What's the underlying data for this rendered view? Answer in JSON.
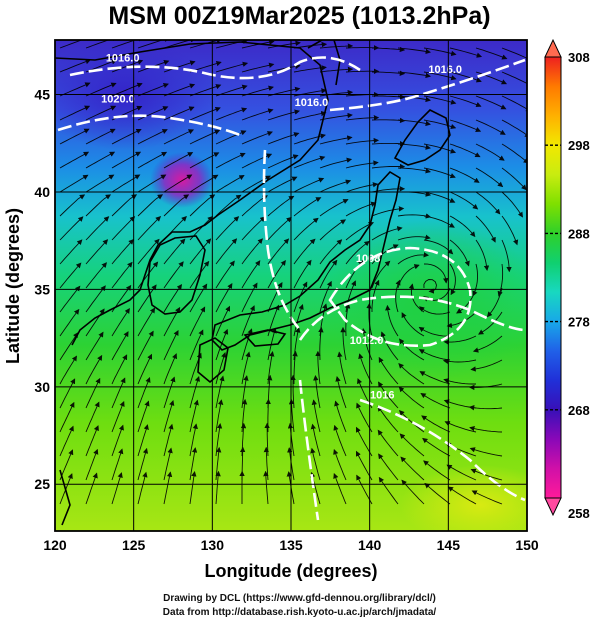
{
  "title": "MSM 00Z19Mar2025 (1013.2hPa)",
  "map": {
    "xlabel": "Longitude (degrees)",
    "ylabel": "Latitude  (degrees)",
    "xlim": [
      120,
      150
    ],
    "ylim": [
      22.6,
      47.8
    ],
    "xticks": [
      "120",
      "125",
      "130",
      "135",
      "140",
      "145",
      "150"
    ],
    "yticks": [
      "25",
      "30",
      "35",
      "40",
      "45"
    ],
    "grid": true,
    "contours": [
      {
        "label": "1016.0",
        "lon": 124.3,
        "lat": 46.7
      },
      {
        "label": "1020.0",
        "lon": 124.0,
        "lat": 44.6
      },
      {
        "label": "1016.0",
        "lon": 136.3,
        "lat": 44.4
      },
      {
        "label": "1016.0",
        "lon": 144.8,
        "lat": 46.1
      },
      {
        "label": "1008",
        "lon": 139.9,
        "lat": 36.4
      },
      {
        "label": "1012.0",
        "lon": 139.8,
        "lat": 32.2
      },
      {
        "label": "1016",
        "lon": 140.8,
        "lat": 29.4
      }
    ]
  },
  "colorbar": {
    "min": 258,
    "max": 308,
    "ticks": [
      "308",
      "298",
      "288",
      "278",
      "268",
      "258"
    ],
    "colors": [
      "#ee2020",
      "#ff7a00",
      "#ffb000",
      "#f2e800",
      "#c8ec10",
      "#7fe000",
      "#2fd02a",
      "#10d070",
      "#18d8c0",
      "#18a8e8",
      "#2060e8",
      "#2030d8",
      "#3810b8",
      "#8a08b8",
      "#d010a8",
      "#ff1a9a"
    ]
  },
  "credits": {
    "line1": "Drawing by DCL (https://www.gfd-dennou.org/library/dcl/)",
    "line2": "Data from http://database.rish.kyoto-u.ac.jp/arch/jmadata/"
  }
}
